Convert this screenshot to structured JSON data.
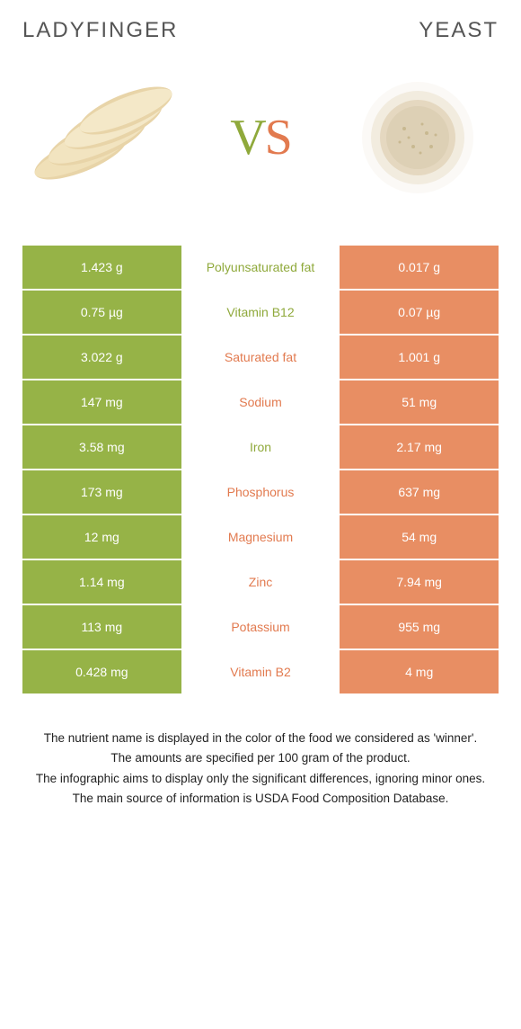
{
  "header": {
    "left_title": "Ladyfinger",
    "right_title": "Yeast"
  },
  "vs": {
    "v": "V",
    "s": "S"
  },
  "colors": {
    "left_bg": "#96b347",
    "right_bg": "#e88e63",
    "left_text": "#8fa93b",
    "right_text": "#e27a4f",
    "cell_text": "#ffffff",
    "footer_text": "#222222",
    "header_text": "#555555"
  },
  "rows": [
    {
      "left": "1.423 g",
      "nutrient": "Polyunsaturated fat",
      "right": "0.017 g",
      "winner": "left"
    },
    {
      "left": "0.75 µg",
      "nutrient": "Vitamin B12",
      "right": "0.07 µg",
      "winner": "left"
    },
    {
      "left": "3.022 g",
      "nutrient": "Saturated fat",
      "right": "1.001 g",
      "winner": "right"
    },
    {
      "left": "147 mg",
      "nutrient": "Sodium",
      "right": "51 mg",
      "winner": "right"
    },
    {
      "left": "3.58 mg",
      "nutrient": "Iron",
      "right": "2.17 mg",
      "winner": "left"
    },
    {
      "left": "173 mg",
      "nutrient": "Phosphorus",
      "right": "637 mg",
      "winner": "right"
    },
    {
      "left": "12 mg",
      "nutrient": "Magnesium",
      "right": "54 mg",
      "winner": "right"
    },
    {
      "left": "1.14 mg",
      "nutrient": "Zinc",
      "right": "7.94 mg",
      "winner": "right"
    },
    {
      "left": "113 mg",
      "nutrient": "Potassium",
      "right": "955 mg",
      "winner": "right"
    },
    {
      "left": "0.428 mg",
      "nutrient": "Vitamin B2",
      "right": "4 mg",
      "winner": "right"
    }
  ],
  "footer": {
    "line1": "The nutrient name is displayed in the color of the food we considered as 'winner'.",
    "line2": "The amounts are specified per 100 gram of the product.",
    "line3": "The infographic aims to display only the significant differences, ignoring minor ones.",
    "line4": "The main source of information is USDA Food Composition Database."
  }
}
